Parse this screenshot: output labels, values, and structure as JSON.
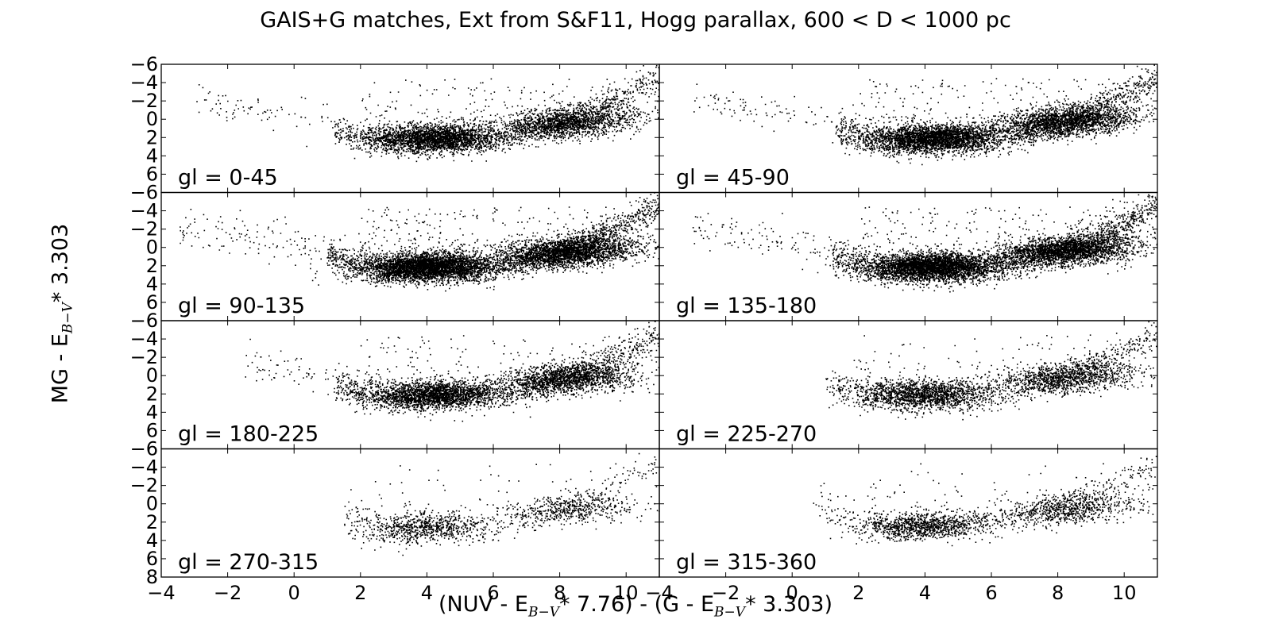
{
  "title": "GAIS+G matches, Ext from S&F11, Hogg parallax, 600 < D < 1000 pc",
  "xlabel": {
    "part1": "(NUV - E",
    "sub1": "B−V",
    "part2": "* 7.76) - (G - E",
    "sub2": "B−V",
    "part3": "* 3.303)"
  },
  "ylabel": {
    "part1": "MG - E",
    "sub1": "B−V",
    "part2": "* 3.303"
  },
  "chart_data": {
    "type": "scatter",
    "marker_color": "#000000",
    "xlim": [
      -4,
      11
    ],
    "ylim": [
      8,
      -6
    ],
    "y_inverted": true,
    "x_ticks": [
      -4,
      -2,
      0,
      2,
      4,
      6,
      8,
      10
    ],
    "y_ticks": [
      -6,
      -4,
      -2,
      0,
      2,
      4,
      6,
      8
    ],
    "grid": false,
    "panels": [
      {
        "label": "gl = 0-45",
        "density": 0.85,
        "blue_cluster": [
          4.2,
          2.0
        ],
        "red_cluster": [
          8.2,
          0.3
        ],
        "x_range": [
          -3,
          11
        ]
      },
      {
        "label": "gl = 45-90",
        "density": 1.0,
        "blue_cluster": [
          4.3,
          2.0
        ],
        "red_cluster": [
          8.3,
          0.2
        ],
        "x_range": [
          -3,
          11
        ]
      },
      {
        "label": "gl = 90-135",
        "density": 1.3,
        "blue_cluster": [
          4.0,
          2.0
        ],
        "red_cluster": [
          8.2,
          0.5
        ],
        "x_range": [
          -3.5,
          11
        ]
      },
      {
        "label": "gl = 135-180",
        "density": 1.2,
        "blue_cluster": [
          4.2,
          2.0
        ],
        "red_cluster": [
          8.3,
          0.3
        ],
        "x_range": [
          -3,
          11
        ]
      },
      {
        "label": "gl = 180-225",
        "density": 0.8,
        "blue_cluster": [
          4.2,
          2.0
        ],
        "red_cluster": [
          8.2,
          0.3
        ],
        "x_range": [
          -1.5,
          11
        ]
      },
      {
        "label": "gl = 225-270",
        "density": 0.55,
        "blue_cluster": [
          4.0,
          2.0
        ],
        "red_cluster": [
          8.3,
          0.2
        ],
        "x_range": [
          1,
          11
        ]
      },
      {
        "label": "gl = 270-315",
        "density": 0.25,
        "blue_cluster": [
          4.0,
          2.5
        ],
        "red_cluster": [
          8.3,
          0.5
        ],
        "x_range": [
          1.5,
          11
        ]
      },
      {
        "label": "gl = 315-360",
        "density": 0.35,
        "blue_cluster": [
          4.0,
          2.3
        ],
        "red_cluster": [
          8.3,
          0.5
        ],
        "x_range": [
          0.5,
          11
        ]
      }
    ]
  }
}
